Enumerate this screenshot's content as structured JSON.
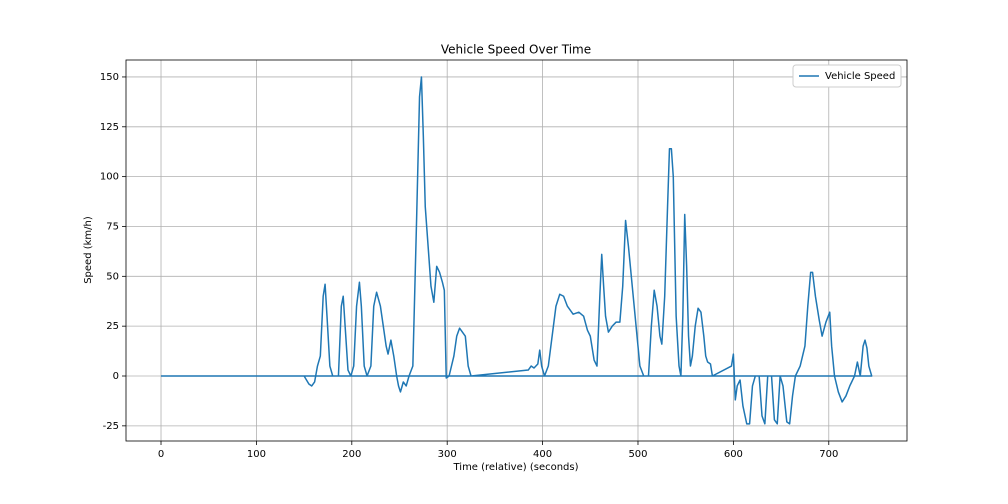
{
  "chart_data": {
    "type": "line",
    "title": "Vehicle Speed Over Time",
    "xlabel": "Time (relative) (seconds)",
    "ylabel": "Speed (km/h)",
    "x": [
      150,
      155,
      158,
      161,
      164,
      167,
      170,
      172,
      174,
      177,
      180,
      186,
      189,
      191,
      193,
      196,
      199,
      202,
      205,
      208,
      210,
      213,
      216,
      220,
      223,
      226,
      230,
      233,
      236,
      238,
      241,
      244,
      247,
      249,
      251,
      254,
      257,
      260,
      264,
      268,
      271,
      273,
      275,
      277,
      280,
      283,
      286,
      289,
      292,
      295,
      297,
      299,
      302,
      307,
      310,
      313,
      316,
      319,
      322,
      325,
      385,
      388,
      391,
      395,
      397,
      399,
      402,
      406,
      410,
      414,
      418,
      422,
      426,
      432,
      438,
      443,
      447,
      450,
      454,
      457,
      460,
      462,
      464,
      466,
      469,
      473,
      477,
      481,
      484,
      487,
      490,
      494,
      498,
      502,
      506,
      511,
      514,
      517,
      520,
      523,
      525,
      528,
      531,
      533,
      535,
      537,
      540,
      543,
      545,
      547,
      549,
      551,
      553,
      555,
      557,
      560,
      563,
      566,
      569,
      571,
      573,
      576,
      578,
      598,
      600,
      602,
      604,
      607,
      610,
      614,
      617,
      620,
      623,
      627,
      630,
      633,
      636,
      640,
      643,
      646,
      649,
      652,
      656,
      659,
      662,
      665,
      670,
      675,
      678,
      681,
      683,
      686,
      690,
      693,
      697,
      701,
      703,
      706,
      710,
      714,
      718,
      722,
      724,
      727,
      730,
      733,
      736,
      738,
      740,
      742,
      745,
      0
    ],
    "series": [
      {
        "name": "Vehicle Speed",
        "color": "#1f77b4",
        "values": [
          0,
          -4,
          -5,
          -3,
          5,
          10,
          40,
          46,
          30,
          5,
          0,
          0,
          35,
          40,
          25,
          3,
          0,
          5,
          35,
          47,
          35,
          5,
          0,
          5,
          35,
          42,
          35,
          25,
          15,
          11,
          18,
          10,
          0,
          -5,
          -8,
          -3,
          -5,
          0,
          5,
          80,
          140,
          150,
          120,
          85,
          65,
          45,
          37,
          55,
          52,
          47,
          43,
          -1,
          0,
          10,
          20,
          24,
          22,
          20,
          5,
          0,
          3,
          5,
          4,
          6,
          13,
          5,
          0,
          5,
          20,
          35,
          41,
          40,
          35,
          31,
          32,
          30,
          23,
          20,
          8,
          5,
          40,
          61,
          45,
          30,
          22,
          25,
          27,
          27,
          45,
          78,
          65,
          45,
          25,
          5,
          0,
          0,
          25,
          43,
          35,
          20,
          16,
          40,
          85,
          114,
          114,
          100,
          30,
          5,
          0,
          30,
          81,
          55,
          20,
          5,
          10,
          25,
          34,
          32,
          20,
          10,
          7,
          6,
          0,
          5,
          11,
          -12,
          -5,
          -2,
          -15,
          -24,
          -24,
          -5,
          0,
          0,
          -20,
          -24,
          0,
          0,
          -22,
          -24,
          0,
          -5,
          -23,
          -24,
          -10,
          0,
          5,
          15,
          35,
          52,
          52,
          40,
          28,
          20,
          27,
          32,
          15,
          0,
          -8,
          -13,
          -10,
          -5,
          -3,
          0,
          7,
          0,
          15,
          18,
          14,
          5,
          0,
          0
        ]
      }
    ],
    "xlim": [
      -36.7,
      782
    ],
    "ylim": [
      -32.6,
      158.5
    ],
    "xticks": [
      0,
      100,
      200,
      300,
      400,
      500,
      600,
      700
    ],
    "yticks": [
      -25,
      0,
      25,
      50,
      75,
      100,
      125,
      150
    ],
    "grid": true,
    "legend": "upper right"
  }
}
